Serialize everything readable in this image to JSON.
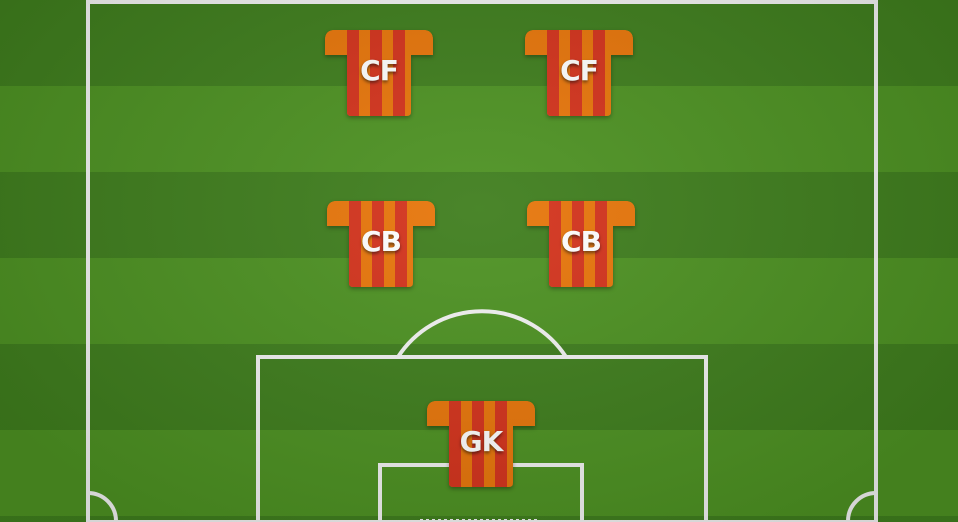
{
  "formation": {
    "players": [
      {
        "id": "cf-left",
        "position": "CF"
      },
      {
        "id": "cf-right",
        "position": "CF"
      },
      {
        "id": "cb-left",
        "position": "CB"
      },
      {
        "id": "cb-right",
        "position": "CB"
      },
      {
        "id": "gk",
        "position": "GK"
      }
    ]
  },
  "colors": {
    "kit_orange": "#e8760a",
    "kit_red": "#d4331c",
    "pitch_dark": "#3f7e1d",
    "pitch_light": "#4d9222",
    "lines": "#ffffff"
  }
}
